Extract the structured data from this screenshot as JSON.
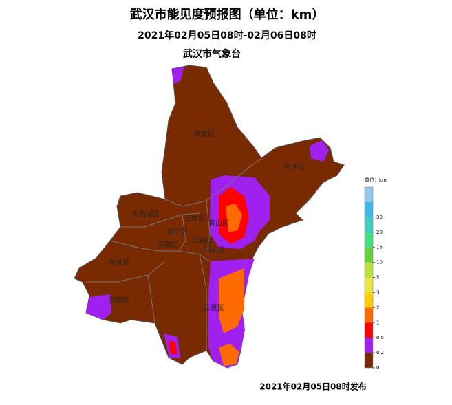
{
  "header": {
    "title": "武汉市能见度预报图（单位：km）",
    "subtitle": "2021年02月05日08时-02月06日08时",
    "org": "武汉市气象台"
  },
  "districts": [
    "黄陂区",
    "新洲区",
    "东西湖区",
    "江岸区",
    "硚口区",
    "汉阳区",
    "武昌区",
    "青山区",
    "洪山区",
    "蔡甸区",
    "汉南区",
    "江夏区"
  ],
  "legend": {
    "title": "单位：km",
    "ticks": [
      0,
      0.2,
      0.5,
      1,
      2,
      3,
      5,
      10,
      15,
      20,
      30
    ],
    "colors": [
      "#7a2a00",
      "#a020f0",
      "#ff0000",
      "#ff6a00",
      "#ffcc00",
      "#e8e640",
      "#b8e040",
      "#66d040",
      "#40e080",
      "#40d0c0",
      "#40b8e8",
      "#90c8f0"
    ]
  },
  "footer": "2021年02月05日08时发布"
}
